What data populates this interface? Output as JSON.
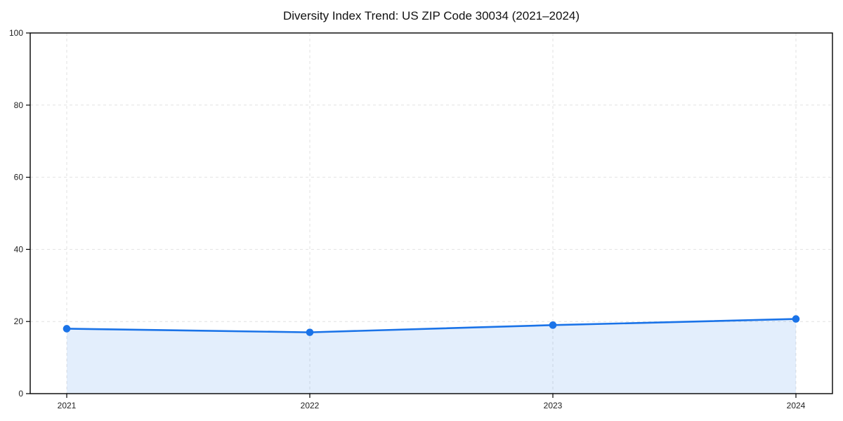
{
  "page": {
    "background_color": "#ffffff"
  },
  "chart_data": {
    "type": "area",
    "title": "Diversity Index Trend: US ZIP Code 30034 (2021–2024)",
    "x": [
      2021,
      2022,
      2023,
      2024
    ],
    "xtick_labels": [
      "2021",
      "2022",
      "2023",
      "2024"
    ],
    "series": [
      {
        "name": "Diversity Index",
        "values": [
          18,
          17,
          19,
          20.7
        ]
      }
    ],
    "xlabel": "",
    "ylabel": "",
    "ylim": [
      0,
      100
    ],
    "yticks": [
      0,
      20,
      40,
      60,
      80,
      100
    ],
    "grid": "dashed both axes",
    "legend": "none",
    "marker": "circle",
    "colors": {
      "line": "#1a73e8",
      "marker": "#1a73e8",
      "area_fill": "rgba(26,115,232,0.12)",
      "gridline": "#e2e2e2",
      "plot_border": "#000000",
      "tick_label": "#222222",
      "title": "#111111"
    }
  }
}
